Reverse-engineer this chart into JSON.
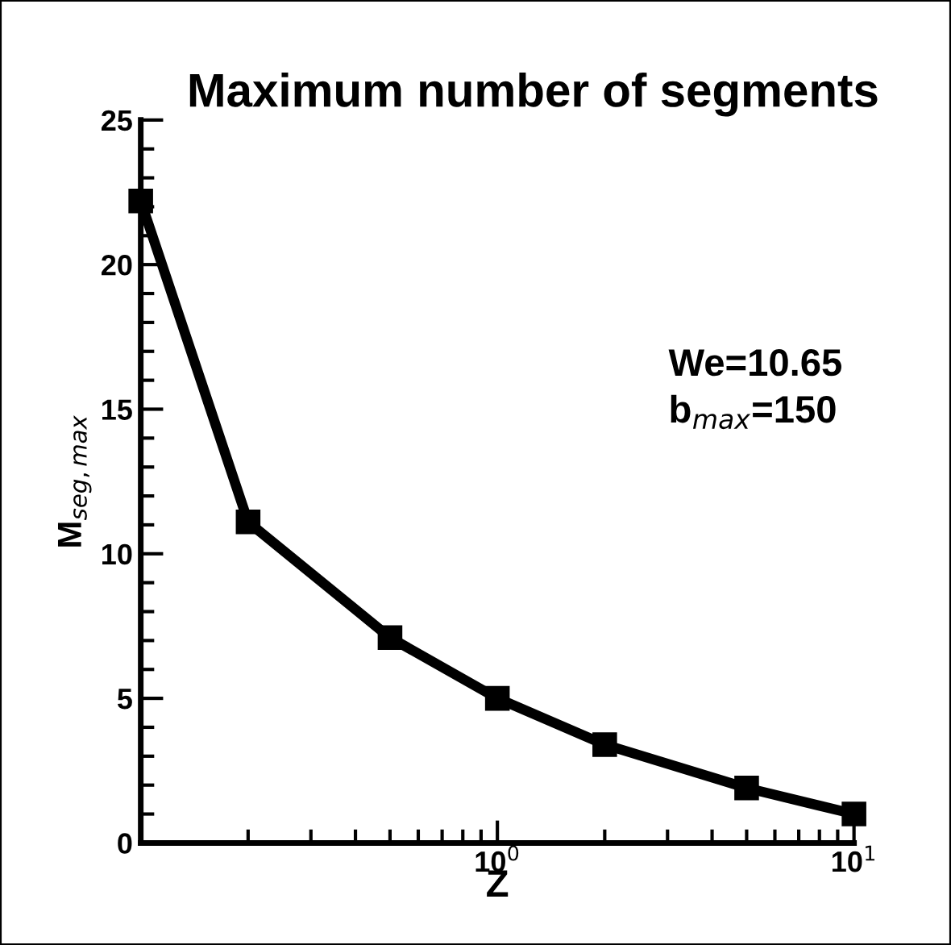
{
  "chart_data": {
    "type": "line",
    "title": "Maximum number of segments",
    "xlabel": "Z",
    "ylabel": "M$_{seg,max}$",
    "x": [
      0.1,
      0.2,
      0.5,
      1,
      2,
      5,
      10
    ],
    "series": [
      {
        "color": "#000000",
        "values": [
          22.2,
          11.1,
          7.1,
          5.0,
          3.4,
          1.9,
          1.0
        ]
      }
    ],
    "log": "x",
    "xlim": [
      0.1,
      10
    ],
    "xticks": [
      {
        "value": 1,
        "label": "10$^{0}$"
      },
      {
        "value": 10,
        "label": "10$^{1}$"
      }
    ],
    "ylim": [
      0,
      25
    ],
    "yticks": [
      0,
      5,
      10,
      15,
      20,
      25
    ],
    "marker": "square",
    "line_style": "solid",
    "grid": false,
    "legend": false,
    "annotations": [
      "We=10.65",
      "b$_{max}$=150"
    ]
  }
}
